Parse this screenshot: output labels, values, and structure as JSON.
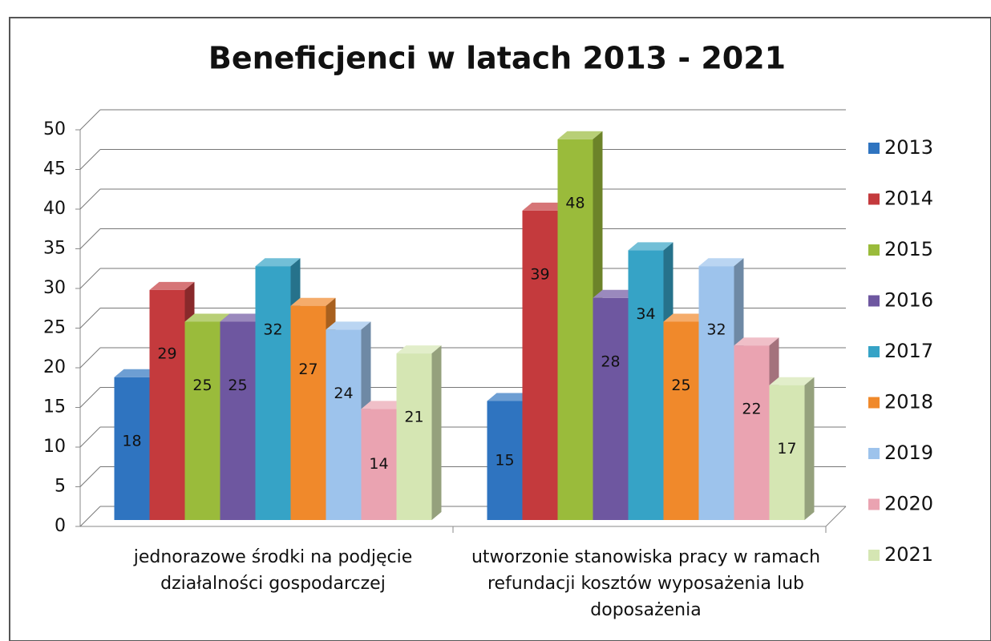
{
  "chart_data": {
    "type": "bar3d",
    "title": "Beneficjenci w latach 2013 - 2021",
    "categories": [
      "jednorazowe środki na podjęcie działalności gospodarczej",
      "utworzonie stanowiska pracy w ramach  refundacji kosztów wyposażenia lub doposażenia"
    ],
    "series": [
      {
        "name": "2013",
        "color": "#2f74c0",
        "values": [
          18,
          15
        ]
      },
      {
        "name": "2014",
        "color": "#c43a3d",
        "values": [
          29,
          39
        ]
      },
      {
        "name": "2015",
        "color": "#9abb3b",
        "values": [
          25,
          48
        ]
      },
      {
        "name": "2016",
        "color": "#6e57a0",
        "values": [
          25,
          28
        ]
      },
      {
        "name": "2017",
        "color": "#36a3c6",
        "values": [
          32,
          34
        ]
      },
      {
        "name": "2018",
        "color": "#f0892b",
        "values": [
          27,
          25
        ]
      },
      {
        "name": "2019",
        "color": "#9dc3ec",
        "values": [
          24,
          32
        ]
      },
      {
        "name": "2020",
        "color": "#eaa3b1",
        "values": [
          14,
          22
        ]
      },
      {
        "name": "2021",
        "color": "#d5e6b3",
        "values": [
          21,
          17
        ]
      }
    ],
    "ylim": [
      0,
      50
    ],
    "yticks": [
      0,
      5,
      10,
      15,
      20,
      25,
      30,
      35,
      40,
      45,
      50
    ],
    "grid": true,
    "legend": "right"
  }
}
